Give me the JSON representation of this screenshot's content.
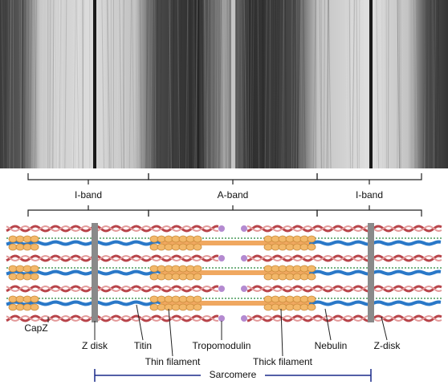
{
  "band_labels": [
    "I-band",
    "A-band",
    "I-band"
  ],
  "structure_labels": [
    "CapZ",
    "Z disk",
    "Titin",
    "Thin filament",
    "Tropomodulin",
    "Thick filament",
    "Nebulin",
    "Z-disk"
  ],
  "span_label": "Sarcomere"
}
